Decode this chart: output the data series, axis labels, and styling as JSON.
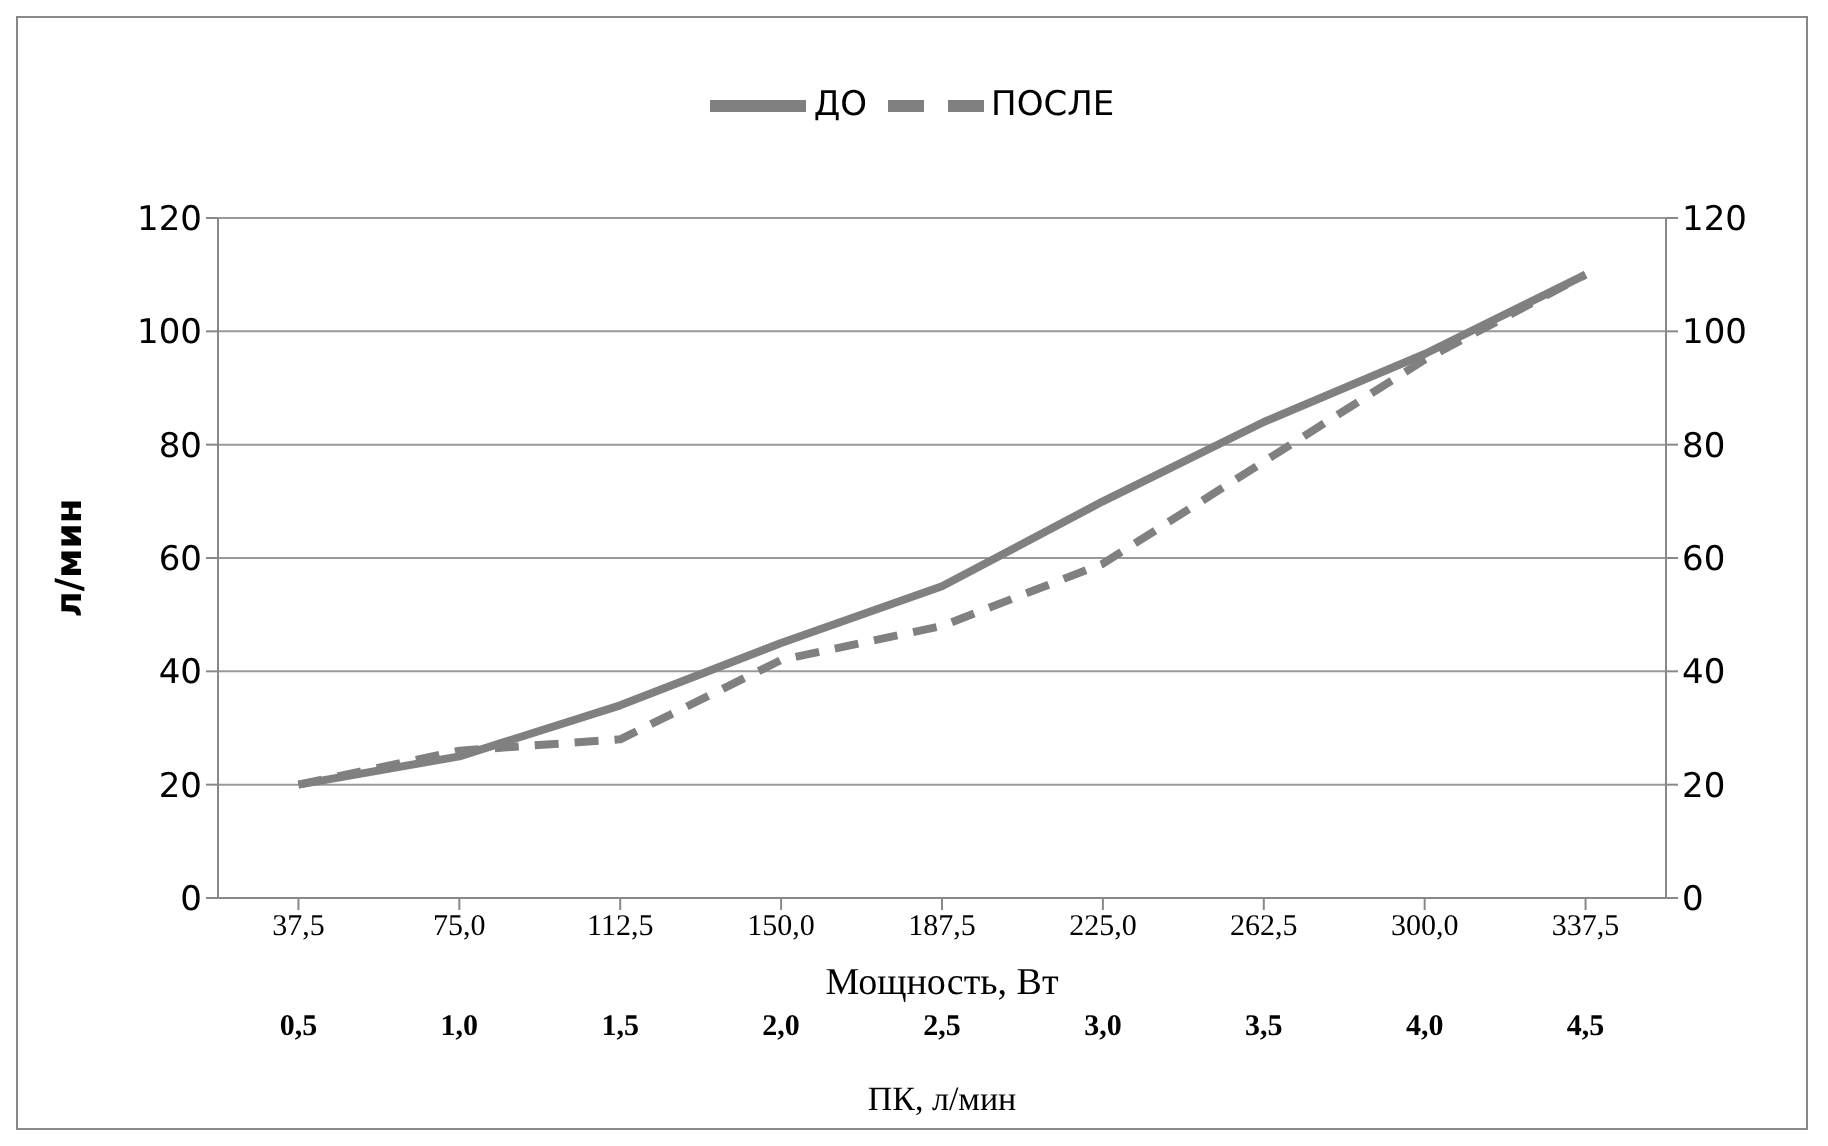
{
  "chart_data": {
    "type": "line",
    "categories": [
      "37,5",
      "75,0",
      "112,5",
      "150,0",
      "187,5",
      "225,0",
      "262,5",
      "300,0",
      "337,5"
    ],
    "series": [
      {
        "name": "ДО",
        "color": "#808080",
        "line_style": "solid",
        "values": [
          20,
          25,
          34,
          45,
          55,
          70,
          84,
          96,
          110
        ]
      },
      {
        "name": "ПОСЛЕ",
        "color": "#808080",
        "line_style": "dashed",
        "values": [
          20,
          26,
          28,
          42,
          48,
          59,
          77,
          95,
          110
        ]
      }
    ],
    "xlabel": "Мощность, Вт",
    "ylabel": "л/мин",
    "x2label": "ПК, л/мин",
    "x2lim": [
      0.25,
      4.75
    ],
    "x2ticks": [
      {
        "value": 0.5,
        "label": "0,5"
      },
      {
        "value": 1,
        "label": "1,0"
      },
      {
        "value": 1.5,
        "label": "1,5"
      },
      {
        "value": 2,
        "label": "2,0"
      },
      {
        "value": 2.5,
        "label": "2,5"
      },
      {
        "value": 3,
        "label": "3,0"
      },
      {
        "value": 3.5,
        "label": "3,5"
      },
      {
        "value": 4,
        "label": "4,0"
      },
      {
        "value": 4.5,
        "label": "4,5"
      }
    ],
    "ylim": [
      0,
      120
    ],
    "yticks": [
      0,
      20,
      40,
      60,
      80,
      100,
      120
    ],
    "y2lim": [
      0,
      120
    ],
    "y2ticks": [
      0,
      20,
      40,
      60,
      80,
      100,
      120
    ],
    "grid": "y",
    "legend": "top",
    "marker": "none"
  }
}
